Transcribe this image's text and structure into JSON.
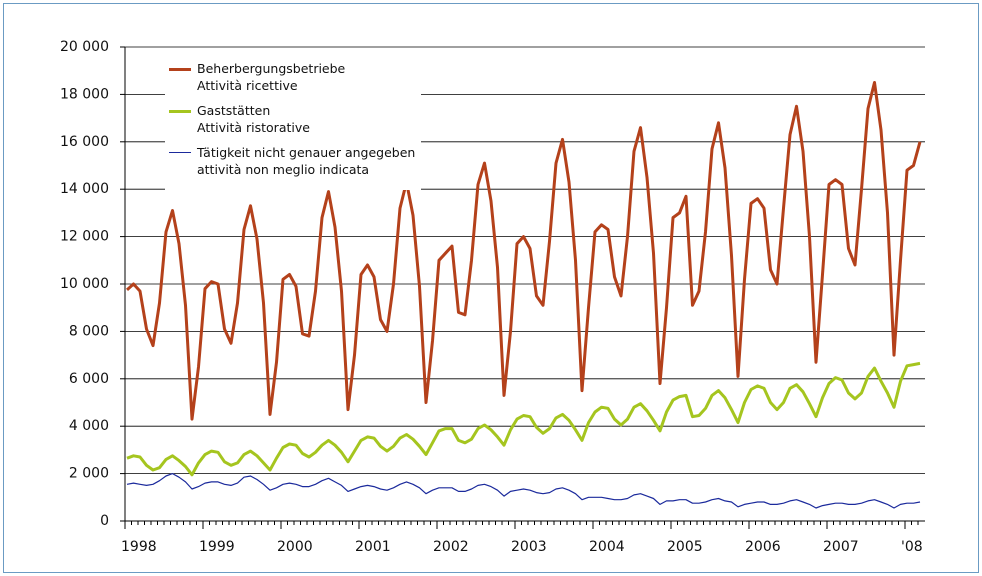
{
  "chart_data": {
    "type": "line",
    "categories": [
      "1998",
      null,
      null,
      null,
      null,
      null,
      null,
      null,
      null,
      null,
      null,
      null,
      "1999",
      null,
      null,
      null,
      null,
      null,
      null,
      null,
      null,
      null,
      null,
      null,
      "2000",
      null,
      null,
      null,
      null,
      null,
      null,
      null,
      null,
      null,
      null,
      null,
      "2001",
      null,
      null,
      null,
      null,
      null,
      null,
      null,
      null,
      null,
      null,
      null,
      "2002",
      null,
      null,
      null,
      null,
      null,
      null,
      null,
      null,
      null,
      null,
      null,
      "2003",
      null,
      null,
      null,
      null,
      null,
      null,
      null,
      null,
      null,
      null,
      null,
      "2004",
      null,
      null,
      null,
      null,
      null,
      null,
      null,
      null,
      null,
      null,
      null,
      "2005",
      null,
      null,
      null,
      null,
      null,
      null,
      null,
      null,
      null,
      null,
      null,
      "2006",
      null,
      null,
      null,
      null,
      null,
      null,
      null,
      null,
      null,
      null,
      null,
      "2007",
      null,
      null,
      null,
      null,
      null,
      null,
      null,
      null,
      null,
      null,
      null,
      "'08",
      null,
      null
    ],
    "series": [
      {
        "name": "Beherbergungsbetriebe\nAttività ricettive",
        "color": "#b4411b",
        "values": [
          9750,
          10000,
          9700,
          8100,
          7400,
          9200,
          12200,
          13100,
          11700,
          9100,
          4300,
          6500,
          9800,
          10100,
          10000,
          8100,
          7500,
          9200,
          12300,
          13300,
          11900,
          9200,
          4500,
          6700,
          10200,
          10400,
          9900,
          7900,
          7800,
          9700,
          12800,
          13900,
          12400,
          9700,
          4700,
          7000,
          10400,
          10800,
          10300,
          8500,
          8000,
          10000,
          13200,
          14300,
          12900,
          9900,
          5000,
          7600,
          11000,
          11300,
          11600,
          8800,
          8700,
          11000,
          14200,
          15100,
          13500,
          10700,
          5300,
          8000,
          11700,
          12000,
          11500,
          9500,
          9100,
          11800,
          15100,
          16100,
          14300,
          11000,
          5500,
          9000,
          12200,
          12500,
          12300,
          10300,
          9500,
          12000,
          15600,
          16600,
          14500,
          11300,
          5800,
          9000,
          12800,
          13000,
          13700,
          9100,
          9700,
          12200,
          15700,
          16800,
          14900,
          11200,
          6100,
          10200,
          13400,
          13600,
          13200,
          10600,
          10000,
          13200,
          16300,
          17500,
          15600,
          12000,
          6700,
          10400,
          14200,
          14400,
          14200,
          11500,
          10800,
          14000,
          17400,
          18500,
          16500,
          13000,
          7000,
          11000,
          14800,
          15000,
          16000
        ]
      },
      {
        "name": "Gaststätten\nAttività ristorative",
        "color": "#a5c51f",
        "values": [
          2650,
          2750,
          2700,
          2350,
          2150,
          2250,
          2600,
          2750,
          2550,
          2300,
          1950,
          2450,
          2800,
          2950,
          2900,
          2500,
          2350,
          2450,
          2800,
          2950,
          2750,
          2450,
          2150,
          2650,
          3100,
          3250,
          3200,
          2850,
          2700,
          2900,
          3200,
          3400,
          3200,
          2900,
          2500,
          2950,
          3400,
          3550,
          3500,
          3150,
          2950,
          3150,
          3500,
          3650,
          3450,
          3150,
          2800,
          3300,
          3800,
          3900,
          3900,
          3400,
          3300,
          3450,
          3900,
          4050,
          3850,
          3550,
          3200,
          3850,
          4300,
          4450,
          4400,
          3950,
          3700,
          3900,
          4350,
          4500,
          4250,
          3850,
          3400,
          4150,
          4600,
          4800,
          4750,
          4300,
          4050,
          4300,
          4800,
          4950,
          4650,
          4250,
          3800,
          4600,
          5100,
          5250,
          5300,
          4400,
          4450,
          4750,
          5300,
          5500,
          5200,
          4700,
          4150,
          5000,
          5550,
          5700,
          5600,
          5000,
          4700,
          5000,
          5600,
          5750,
          5450,
          4950,
          4400,
          5200,
          5800,
          6050,
          5950,
          5400,
          5150,
          5400,
          6100,
          6450,
          5900,
          5400,
          4800,
          5900,
          6550,
          6600,
          6650
        ]
      },
      {
        "name": "Tätigkeit nicht genauer angegeben\nattività non meglio indicata",
        "color": "#1b2a9c",
        "values": [
          1550,
          1600,
          1550,
          1500,
          1550,
          1700,
          1900,
          2000,
          1850,
          1650,
          1350,
          1450,
          1600,
          1650,
          1650,
          1550,
          1500,
          1600,
          1850,
          1900,
          1750,
          1550,
          1300,
          1400,
          1550,
          1600,
          1550,
          1450,
          1450,
          1550,
          1700,
          1800,
          1650,
          1500,
          1250,
          1350,
          1450,
          1500,
          1450,
          1350,
          1300,
          1400,
          1550,
          1650,
          1550,
          1400,
          1150,
          1300,
          1400,
          1400,
          1400,
          1250,
          1250,
          1350,
          1500,
          1550,
          1450,
          1300,
          1050,
          1250,
          1300,
          1350,
          1300,
          1200,
          1150,
          1200,
          1350,
          1400,
          1300,
          1150,
          900,
          1000,
          1000,
          1000,
          950,
          900,
          900,
          950,
          1100,
          1150,
          1050,
          950,
          700,
          850,
          850,
          900,
          900,
          750,
          750,
          800,
          900,
          950,
          850,
          800,
          600,
          700,
          750,
          800,
          800,
          700,
          700,
          750,
          850,
          900,
          800,
          700,
          550,
          650,
          700,
          750,
          750,
          700,
          700,
          750,
          850,
          900,
          800,
          700,
          550,
          700,
          750,
          750,
          800
        ]
      }
    ],
    "ylim": [
      0,
      20000
    ],
    "yticks": [
      0,
      {
        "value": 2000,
        "label": "2 000"
      },
      {
        "value": 4000,
        "label": "4 000"
      },
      {
        "value": 6000,
        "label": "6 000"
      },
      {
        "value": 8000,
        "label": "8 000"
      },
      {
        "value": 10000,
        "label": "10 000"
      },
      {
        "value": 12000,
        "label": "12 000"
      },
      {
        "value": 14000,
        "label": "14 000"
      },
      {
        "value": 16000,
        "label": "16 000"
      },
      {
        "value": 18000,
        "label": "18 000"
      },
      {
        "value": 20000,
        "label": "20 000"
      }
    ],
    "grid": true
  }
}
